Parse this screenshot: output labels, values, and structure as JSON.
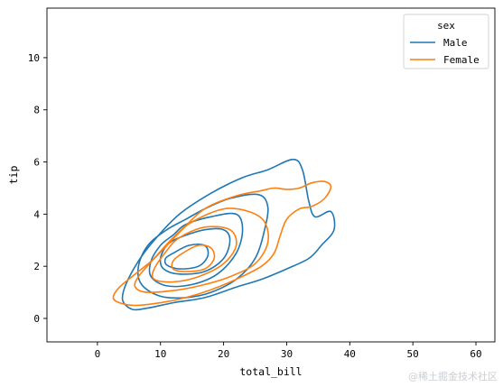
{
  "chart_data": {
    "type": "kde_contour",
    "xlabel": "total_bill",
    "ylabel": "tip",
    "xlim": [
      -8,
      63
    ],
    "ylim": [
      -0.9,
      11.9
    ],
    "xticks": [
      0,
      10,
      20,
      30,
      40,
      50,
      60
    ],
    "yticks": [
      0,
      2,
      4,
      6,
      8,
      10
    ],
    "grid": false,
    "legend": {
      "title": "sex",
      "placement": "top-right"
    },
    "series": [
      {
        "name": "Male",
        "color": "#1f77b4",
        "contours": [
          [
            [
              27,
              5.7
            ],
            [
              31,
              6.1
            ],
            [
              32.5,
              5.7
            ],
            [
              33.5,
              4.5
            ],
            [
              34.5,
              3.9
            ],
            [
              37,
              4.1
            ],
            [
              37.5,
              3.4
            ],
            [
              35.5,
              2.8
            ],
            [
              33.5,
              2.3
            ],
            [
              30,
              1.9
            ],
            [
              26,
              1.5
            ],
            [
              22,
              1.2
            ],
            [
              17,
              0.8
            ],
            [
              12,
              0.6
            ],
            [
              8,
              0.4
            ],
            [
              5.5,
              0.35
            ],
            [
              4,
              0.7
            ],
            [
              4.5,
              1.3
            ],
            [
              6.5,
              2.2
            ],
            [
              9,
              3.0
            ],
            [
              13,
              4.0
            ],
            [
              18,
              4.8
            ],
            [
              23,
              5.4
            ]
          ],
          [
            [
              17,
              4.2
            ],
            [
              21,
              4.6
            ],
            [
              25.5,
              4.75
            ],
            [
              27,
              4.3
            ],
            [
              26.5,
              3.4
            ],
            [
              25,
              2.3
            ],
            [
              22,
              1.5
            ],
            [
              18,
              1.0
            ],
            [
              14,
              0.8
            ],
            [
              10,
              0.85
            ],
            [
              7,
              1.3
            ],
            [
              6.5,
              2.0
            ],
            [
              8,
              2.8
            ],
            [
              11,
              3.4
            ],
            [
              14,
              3.8
            ]
          ],
          [
            [
              14,
              3.6
            ],
            [
              18,
              3.9
            ],
            [
              22,
              4.0
            ],
            [
              23,
              3.4
            ],
            [
              22,
              2.5
            ],
            [
              19,
              1.7
            ],
            [
              15,
              1.3
            ],
            [
              11,
              1.25
            ],
            [
              8.5,
              1.6
            ],
            [
              8.5,
              2.2
            ],
            [
              10,
              2.8
            ],
            [
              12,
              3.2
            ]
          ],
          [
            [
              13,
              3.1
            ],
            [
              17,
              3.4
            ],
            [
              20,
              3.4
            ],
            [
              21,
              3.0
            ],
            [
              20,
              2.3
            ],
            [
              17,
              1.8
            ],
            [
              13,
              1.7
            ],
            [
              10.5,
              1.9
            ],
            [
              10,
              2.3
            ],
            [
              11,
              2.8
            ]
          ],
          [
            [
              12,
              2.5
            ],
            [
              14.5,
              2.8
            ],
            [
              17,
              2.8
            ],
            [
              17.5,
              2.4
            ],
            [
              16,
              2.0
            ],
            [
              13,
              1.9
            ],
            [
              11,
              2.05
            ],
            [
              10.8,
              2.3
            ]
          ]
        ]
      },
      {
        "name": "Female",
        "color": "#ff7f0e",
        "contours": [
          [
            [
              22,
              4.7
            ],
            [
              26,
              4.9
            ],
            [
              28,
              5.0
            ],
            [
              30,
              4.95
            ],
            [
              32,
              5.0
            ],
            [
              34,
              5.2
            ],
            [
              36,
              5.25
            ],
            [
              37,
              5.05
            ],
            [
              36,
              4.6
            ],
            [
              34,
              4.3
            ],
            [
              32,
              4.2
            ],
            [
              30,
              3.8
            ],
            [
              29,
              3.2
            ],
            [
              28,
              2.5
            ],
            [
              26,
              2.0
            ],
            [
              22,
              1.5
            ],
            [
              18,
              1.1
            ],
            [
              14,
              0.8
            ],
            [
              10,
              0.6
            ],
            [
              6,
              0.5
            ],
            [
              3.5,
              0.6
            ],
            [
              2.5,
              0.8
            ],
            [
              3.5,
              1.2
            ],
            [
              6,
              1.7
            ],
            [
              9,
              2.3
            ],
            [
              13,
              3.3
            ],
            [
              17,
              4.2
            ]
          ],
          [
            [
              15,
              3.7
            ],
            [
              20,
              4.2
            ],
            [
              24,
              4.1
            ],
            [
              26.5,
              3.7
            ],
            [
              27,
              2.9
            ],
            [
              25,
              2.1
            ],
            [
              21,
              1.6
            ],
            [
              17,
              1.3
            ],
            [
              13,
              1.1
            ],
            [
              8,
              1.0
            ],
            [
              6,
              1.2
            ],
            [
              6.5,
              1.6
            ],
            [
              9,
              2.3
            ],
            [
              12,
              3.1
            ]
          ],
          [
            [
              13,
              3.1
            ],
            [
              17,
              3.5
            ],
            [
              21,
              3.4
            ],
            [
              22,
              2.8
            ],
            [
              20,
              2.1
            ],
            [
              16,
              1.6
            ],
            [
              12,
              1.4
            ],
            [
              9,
              1.5
            ],
            [
              9,
              1.9
            ],
            [
              11,
              2.6
            ]
          ],
          [
            [
              13.5,
              2.5
            ],
            [
              16,
              2.8
            ],
            [
              18,
              2.7
            ],
            [
              18.5,
              2.3
            ],
            [
              17,
              1.9
            ],
            [
              14,
              1.8
            ],
            [
              12,
              1.9
            ],
            [
              12,
              2.2
            ]
          ]
        ]
      }
    ]
  },
  "watermark": "@稀土掘金技术社区"
}
